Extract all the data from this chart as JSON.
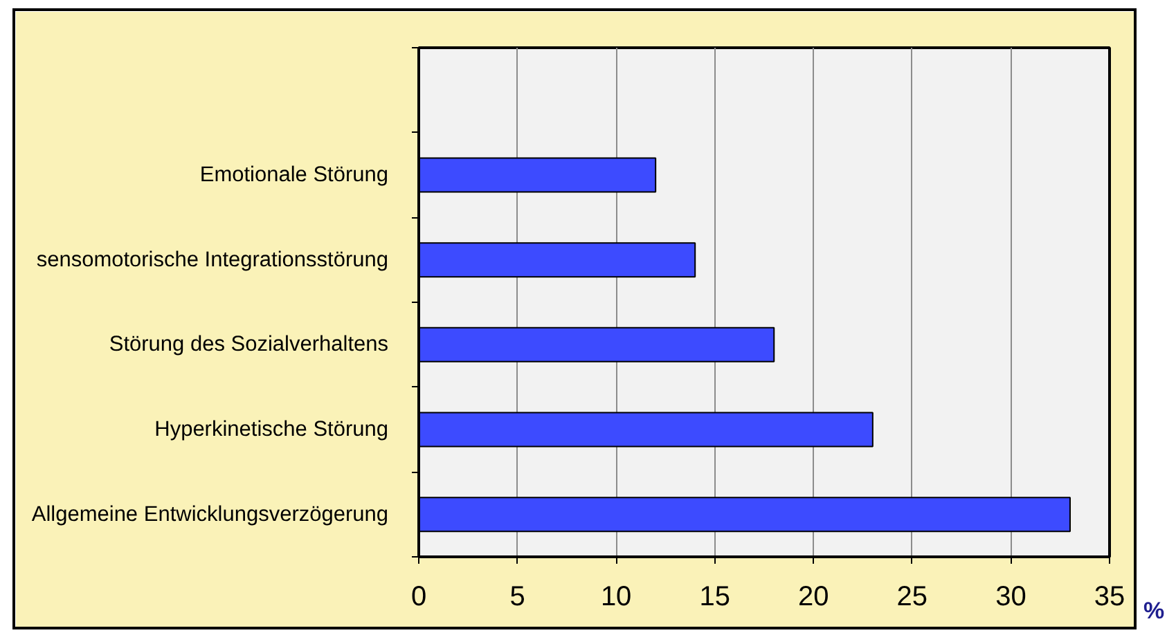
{
  "chart_data": {
    "type": "bar",
    "orientation": "horizontal",
    "categories": [
      null,
      "Emotionale Störung",
      "sensomotorische Integrationsstörung",
      "Störung des Sozialverhaltens",
      "Hyperkinetische Störung",
      "Allgemeine Entwicklungsverzögerung"
    ],
    "values": [
      null,
      12,
      14,
      18,
      23,
      33
    ],
    "color": "#3d4bff",
    "xlabel": "%",
    "xlim": [
      0,
      35
    ],
    "xticks": [
      0,
      5,
      10,
      15,
      20,
      25,
      30,
      35
    ],
    "grid": "x"
  }
}
